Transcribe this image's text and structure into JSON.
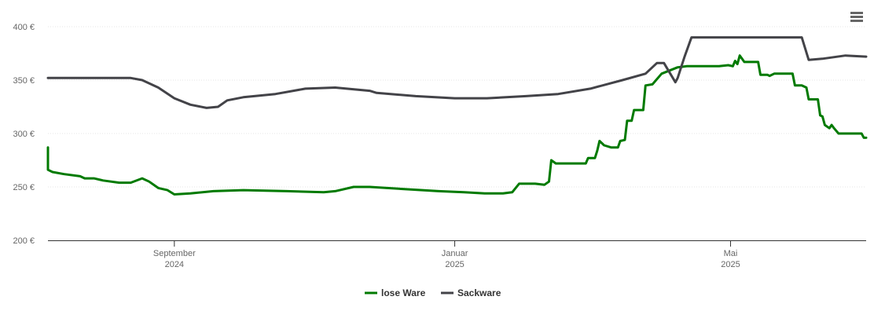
{
  "menu": {
    "icon": "hamburger-menu-icon"
  },
  "chart_data": {
    "type": "line",
    "title": "",
    "xlabel": "",
    "ylabel": "",
    "x_range": [
      "2024-07-08",
      "2025-06-29"
    ],
    "ylim": [
      200,
      400
    ],
    "y_ticks": [
      200,
      250,
      300,
      350,
      400
    ],
    "y_tick_labels": [
      "200 €",
      "250 €",
      "300 €",
      "350 €",
      "400 €"
    ],
    "x_ticks": [
      {
        "date": "2024-09-01",
        "line1": "September",
        "line2": "2024"
      },
      {
        "date": "2025-01-01",
        "line1": "Januar",
        "line2": "2025"
      },
      {
        "date": "2025-05-01",
        "line1": "Mai",
        "line2": "2025"
      }
    ],
    "grid": "horizontal",
    "legend": "bottom-center",
    "series": [
      {
        "name": "lose Ware",
        "color": "#007a00",
        "points": [
          [
            "2024-07-08",
            287
          ],
          [
            "2024-07-08",
            266
          ],
          [
            "2024-07-10",
            264
          ],
          [
            "2024-07-15",
            262
          ],
          [
            "2024-07-22",
            260
          ],
          [
            "2024-07-24",
            258
          ],
          [
            "2024-07-28",
            258
          ],
          [
            "2024-08-01",
            256
          ],
          [
            "2024-08-08",
            254
          ],
          [
            "2024-08-13",
            254
          ],
          [
            "2024-08-18",
            258
          ],
          [
            "2024-08-21",
            255
          ],
          [
            "2024-08-25",
            249
          ],
          [
            "2024-08-29",
            247
          ],
          [
            "2024-09-01",
            243
          ],
          [
            "2024-09-08",
            244
          ],
          [
            "2024-09-18",
            246
          ],
          [
            "2024-10-01",
            247
          ],
          [
            "2024-10-20",
            246
          ],
          [
            "2024-11-05",
            245
          ],
          [
            "2024-11-10",
            246
          ],
          [
            "2024-11-18",
            250
          ],
          [
            "2024-11-25",
            250
          ],
          [
            "2024-12-10",
            248
          ],
          [
            "2024-12-25",
            246
          ],
          [
            "2025-01-05",
            245
          ],
          [
            "2025-01-14",
            244
          ],
          [
            "2025-01-22",
            244
          ],
          [
            "2025-01-26",
            245
          ],
          [
            "2025-01-29",
            253
          ],
          [
            "2025-02-05",
            253
          ],
          [
            "2025-02-09",
            252
          ],
          [
            "2025-02-11",
            255
          ],
          [
            "2025-02-12",
            275
          ],
          [
            "2025-02-14",
            272
          ],
          [
            "2025-02-27",
            272
          ],
          [
            "2025-02-28",
            277
          ],
          [
            "2025-03-03",
            277
          ],
          [
            "2025-03-04",
            284
          ],
          [
            "2025-03-05",
            293
          ],
          [
            "2025-03-07",
            289
          ],
          [
            "2025-03-10",
            287
          ],
          [
            "2025-03-13",
            287
          ],
          [
            "2025-03-14",
            293
          ],
          [
            "2025-03-16",
            294
          ],
          [
            "2025-03-17",
            312
          ],
          [
            "2025-03-19",
            312
          ],
          [
            "2025-03-20",
            322
          ],
          [
            "2025-03-24",
            322
          ],
          [
            "2025-03-25",
            345
          ],
          [
            "2025-03-28",
            346
          ],
          [
            "2025-04-01",
            356
          ],
          [
            "2025-04-08",
            362
          ],
          [
            "2025-04-12",
            363
          ],
          [
            "2025-04-26",
            363
          ],
          [
            "2025-04-30",
            364
          ],
          [
            "2025-05-02",
            363
          ],
          [
            "2025-05-03",
            368
          ],
          [
            "2025-05-04",
            365
          ],
          [
            "2025-05-05",
            373
          ],
          [
            "2025-05-06",
            370
          ],
          [
            "2025-05-07",
            367
          ],
          [
            "2025-05-13",
            367
          ],
          [
            "2025-05-14",
            355
          ],
          [
            "2025-05-17",
            355
          ],
          [
            "2025-05-18",
            354
          ],
          [
            "2025-05-20",
            356
          ],
          [
            "2025-05-28",
            356
          ],
          [
            "2025-05-29",
            345
          ],
          [
            "2025-06-01",
            345
          ],
          [
            "2025-06-03",
            343
          ],
          [
            "2025-06-04",
            332
          ],
          [
            "2025-06-08",
            332
          ],
          [
            "2025-06-09",
            317
          ],
          [
            "2025-06-10",
            316
          ],
          [
            "2025-06-11",
            308
          ],
          [
            "2025-06-13",
            305
          ],
          [
            "2025-06-14",
            308
          ],
          [
            "2025-06-15",
            305
          ],
          [
            "2025-06-17",
            300
          ],
          [
            "2025-06-27",
            300
          ],
          [
            "2025-06-28",
            296
          ],
          [
            "2025-06-29",
            296
          ]
        ]
      },
      {
        "name": "Sackware",
        "color": "#434348",
        "points": [
          [
            "2024-07-08",
            352
          ],
          [
            "2024-08-05",
            352
          ],
          [
            "2024-08-13",
            352
          ],
          [
            "2024-08-18",
            350
          ],
          [
            "2024-08-25",
            343
          ],
          [
            "2024-09-01",
            333
          ],
          [
            "2024-09-08",
            327
          ],
          [
            "2024-09-15",
            324
          ],
          [
            "2024-09-20",
            325
          ],
          [
            "2024-09-24",
            331
          ],
          [
            "2024-10-01",
            334
          ],
          [
            "2024-10-15",
            337
          ],
          [
            "2024-10-28",
            342
          ],
          [
            "2024-11-10",
            343
          ],
          [
            "2024-11-25",
            340
          ],
          [
            "2024-11-28",
            338
          ],
          [
            "2024-12-15",
            335
          ],
          [
            "2025-01-01",
            333
          ],
          [
            "2025-01-15",
            333
          ],
          [
            "2025-02-01",
            335
          ],
          [
            "2025-02-15",
            337
          ],
          [
            "2025-03-01",
            342
          ],
          [
            "2025-03-15",
            350
          ],
          [
            "2025-03-25",
            356
          ],
          [
            "2025-03-30",
            366
          ],
          [
            "2025-04-02",
            366
          ],
          [
            "2025-04-07",
            348
          ],
          [
            "2025-04-08",
            352
          ],
          [
            "2025-04-11",
            372
          ],
          [
            "2025-04-14",
            390
          ],
          [
            "2025-04-21",
            390
          ],
          [
            "2025-05-05",
            390
          ],
          [
            "2025-05-10",
            390
          ],
          [
            "2025-05-24",
            390
          ],
          [
            "2025-06-01",
            390
          ],
          [
            "2025-06-04",
            369
          ],
          [
            "2025-06-10",
            370
          ],
          [
            "2025-06-20",
            373
          ],
          [
            "2025-06-29",
            372
          ]
        ]
      }
    ]
  }
}
